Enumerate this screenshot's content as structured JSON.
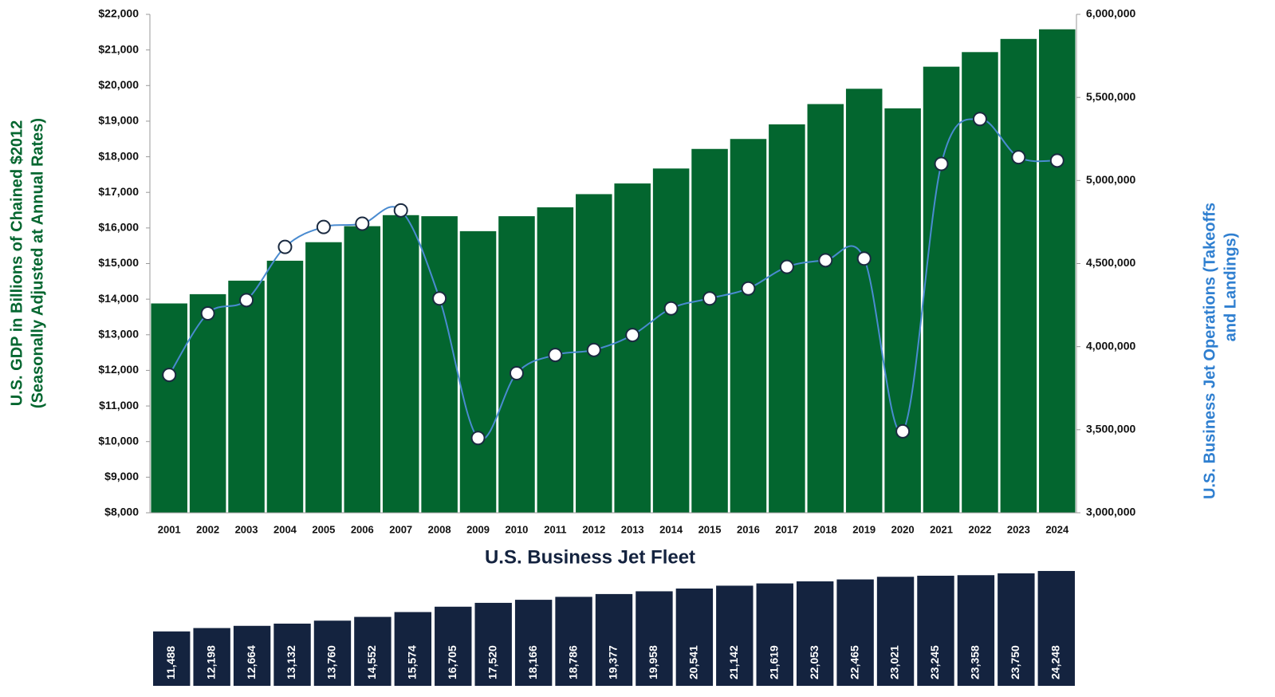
{
  "chart_data": [
    {
      "type": "bar",
      "categories": [
        "2001",
        "2002",
        "2003",
        "2004",
        "2005",
        "2006",
        "2007",
        "2008",
        "2009",
        "2010",
        "2011",
        "2012",
        "2013",
        "2014",
        "2015",
        "2016",
        "2017",
        "2018",
        "2019",
        "2020",
        "2021",
        "2022",
        "2023",
        "2024"
      ],
      "series": [
        {
          "name": "U.S. GDP",
          "color": "#03662f",
          "axis": "y",
          "values": [
            13880,
            14140,
            14520,
            15080,
            15600,
            16050,
            16360,
            16330,
            15910,
            16330,
            16580,
            16950,
            17250,
            17670,
            18220,
            18500,
            18910,
            19480,
            19910,
            19360,
            20530,
            20940,
            21310,
            21580
          ]
        },
        {
          "name": "U.S. Business Jet Operations",
          "type": "line",
          "color": "#4a8bd0",
          "axis": "y2",
          "values": [
            3830000,
            4200000,
            4280000,
            4600000,
            4720000,
            4740000,
            4820000,
            4290000,
            3450000,
            3840000,
            3950000,
            3980000,
            4070000,
            4230000,
            4290000,
            4350000,
            4480000,
            4520000,
            4530000,
            3490000,
            5100000,
            5370000,
            5140000,
            5120000
          ]
        }
      ],
      "y_label": [
        "U.S. GDP in Billions of Chained $2012",
        "(Seasonally Adjusted at Annual Rates)"
      ],
      "y2_label": [
        "U.S. Business Jet Operations (Takeoffs",
        "and Landings)"
      ],
      "ylim": [
        8000,
        22000
      ],
      "yticks": [
        {
          "value": 8000,
          "label": "$8,000"
        },
        {
          "value": 9000,
          "label": "$9,000"
        },
        {
          "value": 10000,
          "label": "$10,000"
        },
        {
          "value": 11000,
          "label": "$11,000"
        },
        {
          "value": 12000,
          "label": "$12,000"
        },
        {
          "value": 13000,
          "label": "$13,000"
        },
        {
          "value": 14000,
          "label": "$14,000"
        },
        {
          "value": 15000,
          "label": "$15,000"
        },
        {
          "value": 16000,
          "label": "$16,000"
        },
        {
          "value": 17000,
          "label": "$17,000"
        },
        {
          "value": 18000,
          "label": "$18,000"
        },
        {
          "value": 19000,
          "label": "$19,000"
        },
        {
          "value": 20000,
          "label": "$20,000"
        },
        {
          "value": 21000,
          "label": "$21,000"
        },
        {
          "value": 22000,
          "label": "$22,000"
        }
      ],
      "y2lim": [
        3000000,
        6000000
      ],
      "y2ticks": [
        {
          "value": 3000000,
          "label": "3,000,000"
        },
        {
          "value": 3500000,
          "label": "3,500,000"
        },
        {
          "value": 4000000,
          "label": "4,000,000"
        },
        {
          "value": 4500000,
          "label": "4,500,000"
        },
        {
          "value": 5000000,
          "label": "5,000,000"
        },
        {
          "value": 5500000,
          "label": "5,500,000"
        },
        {
          "value": 6000000,
          "label": "6,000,000"
        }
      ]
    },
    {
      "type": "bar",
      "title": "U.S. Business Jet Fleet",
      "color": "#14233f",
      "values": [
        11488,
        12198,
        12664,
        13132,
        13760,
        14552,
        15574,
        16705,
        17520,
        18166,
        18786,
        19377,
        19958,
        20541,
        21142,
        21619,
        22053,
        22465,
        23021,
        23245,
        23358,
        23750,
        24248
      ],
      "value_labels": [
        "11,488",
        "12,198",
        "12,664",
        "13,132",
        "13,760",
        "14,552",
        "15,574",
        "16,705",
        "17,520",
        "18,166",
        "18,786",
        "19,377",
        "19,958",
        "20,541",
        "21,142",
        "21,619",
        "22,053",
        "22,465",
        "23,021",
        "23,245",
        "23,358",
        "23,750",
        "24,248"
      ],
      "ylim": [
        0,
        25000
      ]
    }
  ]
}
